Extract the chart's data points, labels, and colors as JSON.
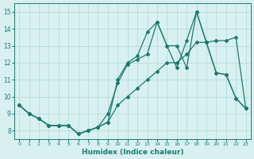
{
  "xlabel": "Humidex (Indice chaleur)",
  "bg_color": "#d8f0f0",
  "grid_color": "#b0d8d8",
  "line_color": "#1a7a6e",
  "xlim": [
    -0.5,
    23.5
  ],
  "ylim": [
    7.5,
    15.5
  ],
  "xticks": [
    0,
    1,
    2,
    3,
    4,
    5,
    6,
    7,
    8,
    9,
    10,
    11,
    12,
    13,
    14,
    15,
    16,
    17,
    18,
    19,
    20,
    21,
    22,
    23
  ],
  "yticks": [
    8,
    9,
    10,
    11,
    12,
    13,
    14,
    15
  ],
  "series1_x": [
    0,
    1,
    2,
    3,
    4,
    5,
    6,
    7,
    8,
    9,
    10,
    11,
    12,
    13,
    14,
    15,
    16,
    17,
    18,
    19,
    20,
    21,
    22,
    23
  ],
  "series1_y": [
    9.5,
    9.0,
    8.7,
    8.3,
    8.3,
    8.3,
    7.8,
    8.0,
    8.2,
    8.5,
    9.5,
    10.0,
    10.5,
    11.0,
    11.5,
    12.0,
    12.0,
    12.5,
    13.2,
    13.2,
    13.3,
    13.3,
    13.5,
    9.3
  ],
  "series2_x": [
    0,
    1,
    2,
    3,
    4,
    5,
    6,
    7,
    8,
    9,
    10,
    11,
    12,
    13,
    14,
    15,
    16,
    17,
    18,
    19,
    20,
    21,
    22,
    23
  ],
  "series2_y": [
    9.5,
    9.0,
    8.7,
    8.3,
    8.3,
    8.3,
    7.8,
    8.0,
    8.2,
    9.0,
    10.8,
    11.9,
    12.2,
    12.5,
    14.4,
    13.0,
    11.7,
    13.3,
    15.0,
    13.2,
    11.4,
    11.3,
    9.9,
    9.3
  ],
  "series3_x": [
    0,
    1,
    2,
    3,
    4,
    5,
    6,
    7,
    8,
    9,
    10,
    11,
    12,
    13,
    14,
    15,
    16,
    17,
    18,
    19,
    20,
    21,
    22,
    23
  ],
  "series3_y": [
    9.5,
    9.0,
    8.7,
    8.3,
    8.3,
    8.3,
    7.8,
    8.0,
    8.2,
    8.5,
    11.0,
    12.0,
    12.4,
    13.8,
    14.4,
    13.0,
    13.0,
    11.7,
    15.0,
    13.2,
    11.4,
    11.3,
    9.9,
    9.3
  ]
}
